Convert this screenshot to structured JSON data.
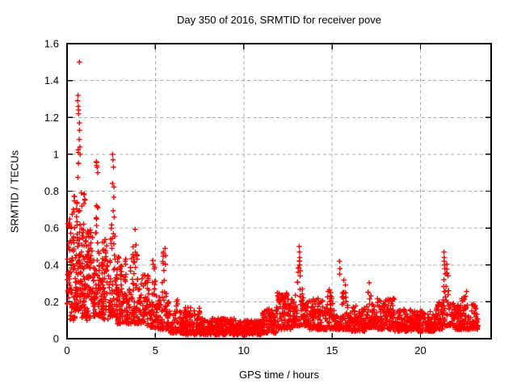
{
  "window": {
    "title": "Day 350 of 2016, SRMTID for receiver pove"
  },
  "chart_data": {
    "type": "scatter",
    "title": "Day 350 of 2016, SRMTID for receiver pove",
    "xlabel": "GPS time / hours",
    "ylabel": "SRMTID / TECUs",
    "xlim": [
      0,
      24
    ],
    "ylim": [
      0,
      1.6
    ],
    "xticks": {
      "values": [
        0,
        5,
        10,
        15,
        20
      ],
      "labels": [
        "0",
        "5",
        "10",
        "15",
        "20"
      ]
    },
    "yticks": {
      "values": [
        0,
        0.2,
        0.4,
        0.6,
        0.8,
        1.0,
        1.2,
        1.4,
        1.6
      ],
      "labels": [
        "0",
        "0.2",
        "0.4",
        "0.6",
        "0.8",
        "1",
        "1.2",
        "1.4",
        "1.6"
      ]
    },
    "grid": true,
    "legend_position": "none",
    "marker": {
      "shape": "plus",
      "color": "#ff0000",
      "size": 7,
      "stroke_width": 1.4
    },
    "series_name": "SRMTID",
    "density_model": {
      "comment_visible_structure": "dense scatter ~120 pts/hour; high activity 0-6h with spikes to 1.5 near 0.7h, ~1.0 at 1.7h and 2.6h, ~0.65 at 3.8h and 5.5h; quiet baseline 0.02-0.12 between 7-11h; moderate bumps 12-18h (0.5 spike at 13.2h, 0.35 spikes at 15.7h and 17.1h); low 19-21h; 0.47 spike at 21.4h; band to 0.2 until data end ~23.2h",
      "seed": 1350,
      "bands": [
        {
          "x0": 0.0,
          "x1": 0.15,
          "lo": 0.15,
          "hi": 0.65,
          "k": 1.1,
          "n": 25
        },
        {
          "x0": 0.15,
          "x1": 0.45,
          "lo": 0.1,
          "hi": 0.78,
          "k": 1.4,
          "n": 60
        },
        {
          "x0": 0.45,
          "x1": 0.8,
          "lo": 0.15,
          "hi": 1.05,
          "k": 1.5,
          "n": 80,
          "peak": 0.63,
          "s": 0.7
        },
        {
          "x0": 0.8,
          "x1": 1.05,
          "lo": 0.1,
          "hi": 0.82,
          "k": 1.5,
          "n": 55
        },
        {
          "x0": 1.05,
          "x1": 1.45,
          "lo": 0.1,
          "hi": 0.62,
          "k": 1.4,
          "n": 70
        },
        {
          "x0": 1.45,
          "x1": 1.95,
          "lo": 0.12,
          "hi": 0.97,
          "k": 1.7,
          "n": 85,
          "peak": 1.68,
          "s": 0.9
        },
        {
          "x0": 1.95,
          "x1": 2.35,
          "lo": 0.1,
          "hi": 0.55,
          "k": 1.4,
          "n": 60
        },
        {
          "x0": 2.35,
          "x1": 2.85,
          "lo": 0.12,
          "hi": 1.0,
          "k": 1.7,
          "n": 85,
          "peak": 2.6,
          "s": 0.9
        },
        {
          "x0": 2.85,
          "x1": 3.35,
          "lo": 0.08,
          "hi": 0.45,
          "k": 1.4,
          "n": 70
        },
        {
          "x0": 3.35,
          "x1": 4.15,
          "lo": 0.08,
          "hi": 0.68,
          "k": 1.7,
          "n": 105,
          "peak": 3.8,
          "s": 0.9
        },
        {
          "x0": 4.15,
          "x1": 4.65,
          "lo": 0.07,
          "hi": 0.35,
          "k": 1.4,
          "n": 60
        },
        {
          "x0": 4.65,
          "x1": 5.15,
          "lo": 0.06,
          "hi": 0.55,
          "k": 1.8,
          "n": 65,
          "peak": 4.9,
          "s": 1.0
        },
        {
          "x0": 5.15,
          "x1": 5.85,
          "lo": 0.05,
          "hi": 0.65,
          "k": 2.0,
          "n": 80,
          "peak": 5.5,
          "s": 1.2
        },
        {
          "x0": 5.85,
          "x1": 6.55,
          "lo": 0.03,
          "hi": 0.26,
          "k": 1.7,
          "n": 80,
          "peak": 6.25,
          "s": 0.8
        },
        {
          "x0": 6.55,
          "x1": 7.55,
          "lo": 0.02,
          "hi": 0.17,
          "k": 1.5,
          "n": 115
        },
        {
          "x0": 7.55,
          "x1": 9.55,
          "lo": 0.02,
          "hi": 0.11,
          "k": 1.3,
          "n": 235
        },
        {
          "x0": 9.55,
          "x1": 11.05,
          "lo": 0.02,
          "hi": 0.1,
          "k": 1.3,
          "n": 175
        },
        {
          "x0": 11.05,
          "x1": 11.85,
          "lo": 0.03,
          "hi": 0.16,
          "k": 1.4,
          "n": 95
        },
        {
          "x0": 11.85,
          "x1": 12.75,
          "lo": 0.05,
          "hi": 0.25,
          "k": 1.5,
          "n": 105
        },
        {
          "x0": 12.75,
          "x1": 13.65,
          "lo": 0.07,
          "hi": 0.5,
          "k": 2.0,
          "n": 115,
          "peak": 13.15,
          "s": 1.2
        },
        {
          "x0": 13.65,
          "x1": 14.55,
          "lo": 0.05,
          "hi": 0.22,
          "k": 1.5,
          "n": 100
        },
        {
          "x0": 14.55,
          "x1": 15.35,
          "lo": 0.05,
          "hi": 0.3,
          "k": 1.7,
          "n": 90,
          "peak": 14.85,
          "s": 0.8
        },
        {
          "x0": 15.35,
          "x1": 16.05,
          "lo": 0.05,
          "hi": 0.35,
          "k": 1.8,
          "n": 80,
          "peak": 15.7,
          "s": 1.0
        },
        {
          "x0": 16.05,
          "x1": 16.85,
          "lo": 0.04,
          "hi": 0.18,
          "k": 1.5,
          "n": 90
        },
        {
          "x0": 16.85,
          "x1": 17.55,
          "lo": 0.06,
          "hi": 0.35,
          "k": 1.8,
          "n": 85,
          "peak": 17.15,
          "s": 1.0
        },
        {
          "x0": 17.55,
          "x1": 18.55,
          "lo": 0.05,
          "hi": 0.22,
          "k": 1.6,
          "n": 110
        },
        {
          "x0": 18.55,
          "x1": 19.55,
          "lo": 0.04,
          "hi": 0.16,
          "k": 1.4,
          "n": 110
        },
        {
          "x0": 19.55,
          "x1": 20.85,
          "lo": 0.04,
          "hi": 0.15,
          "k": 1.4,
          "n": 145
        },
        {
          "x0": 20.85,
          "x1": 21.25,
          "lo": 0.05,
          "hi": 0.2,
          "k": 1.5,
          "n": 45
        },
        {
          "x0": 21.25,
          "x1": 21.95,
          "lo": 0.07,
          "hi": 0.48,
          "k": 2.0,
          "n": 80,
          "peak": 21.45,
          "s": 1.1
        },
        {
          "x0": 21.95,
          "x1": 23.25,
          "lo": 0.05,
          "hi": 0.26,
          "k": 1.6,
          "n": 150,
          "peak": 22.6,
          "s": 0.5
        }
      ]
    },
    "notable_points": [
      [
        0.7,
        1.5
      ],
      [
        0.62,
        1.32
      ],
      [
        0.6,
        1.29
      ],
      [
        0.64,
        1.26
      ],
      [
        0.66,
        1.24
      ],
      [
        0.65,
        1.22
      ],
      [
        0.7,
        1.17
      ],
      [
        0.71,
        1.13
      ],
      [
        0.69,
        1.08
      ],
      [
        0.73,
        1.04
      ],
      [
        0.74,
        1.0
      ],
      [
        1.66,
        0.96
      ],
      [
        1.7,
        0.93
      ],
      [
        1.74,
        0.9
      ],
      [
        2.58,
        1.0
      ],
      [
        2.6,
        0.97
      ],
      [
        2.63,
        0.93
      ],
      [
        13.14,
        0.5
      ],
      [
        13.15,
        0.47
      ],
      [
        13.16,
        0.44
      ],
      [
        13.15,
        0.42
      ],
      [
        13.17,
        0.4
      ],
      [
        15.42,
        0.42
      ],
      [
        15.44,
        0.38
      ],
      [
        15.43,
        0.35
      ],
      [
        21.33,
        0.47
      ],
      [
        21.35,
        0.44
      ],
      [
        21.34,
        0.42
      ],
      [
        21.36,
        0.4
      ],
      [
        21.37,
        0.38
      ]
    ]
  },
  "style": {
    "background": "#ffffff",
    "axis_color": "#000000",
    "grid_color": "#a8a8a8",
    "text_color": "#000000",
    "point_color": "#ff0000"
  }
}
